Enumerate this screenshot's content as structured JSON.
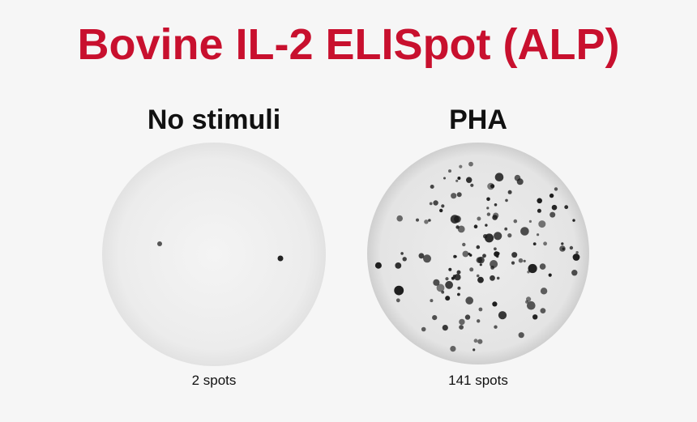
{
  "title": "Bovine IL-2 ELISpot (ALP)",
  "colors": {
    "title": "#c8102e",
    "spot": "#1a1a1a"
  },
  "panels": [
    {
      "label": "No stimuli",
      "caption": "2 spots",
      "spot_count": 2
    },
    {
      "label": "PHA",
      "caption": "141 spots",
      "spot_count": 141
    }
  ]
}
